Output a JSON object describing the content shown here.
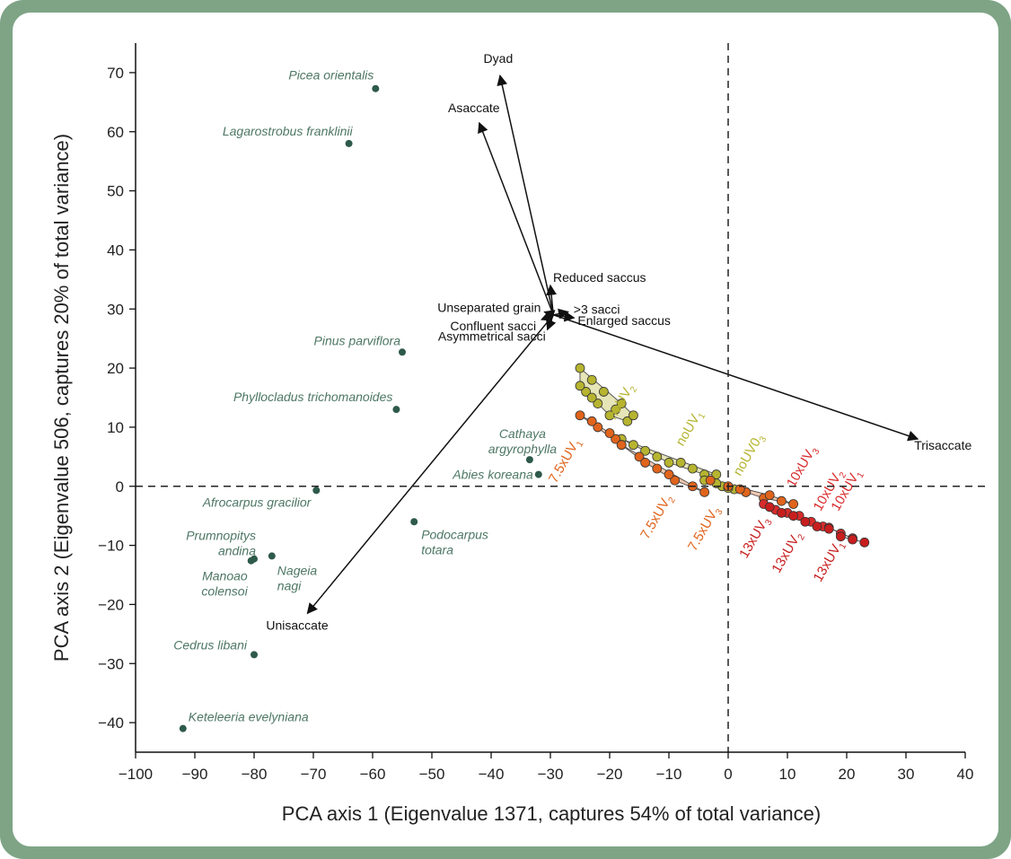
{
  "chart_data": {
    "type": "scatter",
    "title": "",
    "xlabel": "PCA axis 1 (Eigenvalue 1371, captures 54% of total variance)",
    "ylabel": "PCA axis 2 (Eigenvalue 506, captures 20% of total variance)",
    "xlim": [
      -100,
      40
    ],
    "ylim": [
      -45,
      75
    ],
    "xticks": [
      -100,
      -90,
      -80,
      -70,
      -60,
      -50,
      -40,
      -30,
      -20,
      -10,
      0,
      10,
      20,
      30,
      40
    ],
    "yticks": [
      -40,
      -30,
      -20,
      -10,
      0,
      10,
      20,
      30,
      40,
      50,
      60,
      70
    ],
    "grid": false,
    "reference_lines": [
      {
        "axis": "x",
        "value": 0,
        "style": "dashed"
      },
      {
        "axis": "y",
        "value": 0,
        "style": "dashed"
      }
    ],
    "colors": {
      "species": "#2e5a4a",
      "species_label": "#4e7765",
      "noUV": "#b6b430",
      "7.5xUV": "#e0641c",
      "10xUV": "#d92b2b",
      "13xUV": "#c81e1e",
      "arrow": "#111111",
      "frame": "#7ea485"
    },
    "species": [
      {
        "name": "Picea orientalis",
        "x": -59.5,
        "y": 67.3
      },
      {
        "name": "Lagarostrobus franklinii",
        "x": -64,
        "y": 58
      },
      {
        "name": "Pinus parviflora",
        "x": -55,
        "y": 22.7
      },
      {
        "name": "Phyllocladus trichomanoides",
        "x": -56,
        "y": 13
      },
      {
        "name": "Cathaya argyrophylla",
        "x": -33.5,
        "y": 4.5
      },
      {
        "name": "Abies koreana",
        "x": -32,
        "y": 2
      },
      {
        "name": "Afrocarpus gracilior",
        "x": -69.5,
        "y": -0.7
      },
      {
        "name": "Podocarpus totara",
        "x": -53,
        "y": -6
      },
      {
        "name": "Prumnopitys andina",
        "x": -80,
        "y": -12.3
      },
      {
        "name": "Manoao colensoi",
        "x": -80.5,
        "y": -12.6
      },
      {
        "name": "Nageia nagi",
        "x": -77,
        "y": -11.8
      },
      {
        "name": "Cedrus libani",
        "x": -80,
        "y": -28.5
      },
      {
        "name": "Keteleeria evelyniana",
        "x": -92,
        "y": -41
      }
    ],
    "trait_vectors": {
      "origin": {
        "x": -29.5,
        "y": 29
      },
      "vectors": [
        {
          "label": "Dyad",
          "x": -38.5,
          "y": 69.5
        },
        {
          "label": "Asaccate",
          "x": -42,
          "y": 61.5
        },
        {
          "label": "Trisaccate",
          "x": 32,
          "y": 8
        },
        {
          "label": "Unisaccate",
          "x": -71,
          "y": -21.5
        },
        {
          "label": "Reduced saccus",
          "x": -30,
          "y": 34
        },
        {
          "label": ">3 sacci",
          "x": -27,
          "y": 29.5
        },
        {
          "label": "Enlarged saccus",
          "x": -26,
          "y": 28.5
        },
        {
          "label": "Unseparated grain",
          "x": -31,
          "y": 29.5
        },
        {
          "label": "Confluent sacci",
          "x": -31.5,
          "y": 28.2
        },
        {
          "label": "Asymmetrical sacci",
          "x": -30.5,
          "y": 26.5
        }
      ]
    },
    "treatment_groups": [
      {
        "name": "noUV2",
        "base": "noUV",
        "sub": "2",
        "color": "#b6b430",
        "points": [
          [
            -25,
            20
          ],
          [
            -23,
            18
          ],
          [
            -21,
            16
          ],
          [
            -19,
            13
          ],
          [
            -17,
            11
          ],
          [
            -16,
            12
          ],
          [
            -22,
            14
          ],
          [
            -24,
            16
          ],
          [
            -20,
            12
          ],
          [
            -18,
            14
          ],
          [
            -25,
            17
          ],
          [
            -23,
            15
          ]
        ]
      },
      {
        "name": "noUV1",
        "base": "noUV",
        "sub": "1",
        "color": "#b6b430",
        "points": [
          [
            -18,
            8
          ],
          [
            -14,
            6
          ],
          [
            -10,
            4
          ],
          [
            -6,
            3
          ],
          [
            -2,
            2
          ],
          [
            -12,
            5
          ],
          [
            -8,
            4
          ],
          [
            -4,
            2
          ],
          [
            -16,
            7
          ]
        ]
      },
      {
        "name": "noUV03",
        "base": "noUV0",
        "sub": "3",
        "color": "#b6b430",
        "points": [
          [
            -4,
            1
          ],
          [
            -1,
            0
          ],
          [
            1,
            -0.5
          ],
          [
            3,
            -1
          ],
          [
            -2,
            0.5
          ],
          [
            0,
            -0.3
          ]
        ]
      },
      {
        "name": "7.5xUV1",
        "base": "7.5xUV",
        "sub": "1",
        "color": "#e0641c",
        "points": [
          [
            -25,
            12
          ],
          [
            -22,
            10
          ],
          [
            -19,
            8
          ],
          [
            -23,
            11
          ],
          [
            -20,
            9
          ],
          [
            -18,
            7
          ]
        ]
      },
      {
        "name": "7.5xUV2",
        "base": "7.5xUV",
        "sub": "2",
        "color": "#e0641c",
        "points": [
          [
            -18,
            7
          ],
          [
            -15,
            5
          ],
          [
            -12,
            3
          ],
          [
            -9,
            1
          ],
          [
            -6,
            0
          ],
          [
            -4,
            -1
          ],
          [
            -14,
            4
          ],
          [
            -10,
            2
          ]
        ]
      },
      {
        "name": "7.5xUV3",
        "base": "7.5xUV",
        "sub": "3",
        "color": "#e0641c",
        "points": [
          [
            -3,
            1
          ],
          [
            0,
            0
          ],
          [
            3,
            -1
          ],
          [
            6,
            -2
          ],
          [
            9,
            -2.5
          ],
          [
            11,
            -3
          ],
          [
            2,
            -0.5
          ],
          [
            7,
            -1.5
          ]
        ]
      },
      {
        "name": "10xUV3",
        "base": "10xUV",
        "sub": "3",
        "color": "#d92b2b",
        "points": [
          [
            6,
            -3
          ],
          [
            8,
            -4
          ],
          [
            10,
            -4.5
          ]
        ]
      },
      {
        "name": "10xUV2",
        "base": "10xUV",
        "sub": "2",
        "color": "#d92b2b",
        "points": [
          [
            12,
            -5
          ],
          [
            14,
            -6
          ],
          [
            16,
            -6.8
          ]
        ]
      },
      {
        "name": "10xUV1",
        "base": "10xUV",
        "sub": "1",
        "color": "#d92b2b",
        "points": [
          [
            17,
            -7
          ],
          [
            19,
            -8
          ],
          [
            21,
            -8.8
          ]
        ]
      },
      {
        "name": "13xUV3",
        "base": "13xUV",
        "sub": "3",
        "color": "#c81e1e",
        "points": [
          [
            7,
            -3.5
          ],
          [
            9,
            -4.5
          ],
          [
            11,
            -5
          ]
        ]
      },
      {
        "name": "13xUV2",
        "base": "13xUV",
        "sub": "2",
        "color": "#c81e1e",
        "points": [
          [
            13,
            -6
          ],
          [
            15,
            -6.8
          ],
          [
            17,
            -7.2
          ]
        ]
      },
      {
        "name": "13xUV1",
        "base": "13xUV",
        "sub": "1",
        "color": "#c81e1e",
        "points": [
          [
            19,
            -8.5
          ],
          [
            21,
            -9
          ],
          [
            23,
            -9.5
          ]
        ]
      }
    ]
  }
}
